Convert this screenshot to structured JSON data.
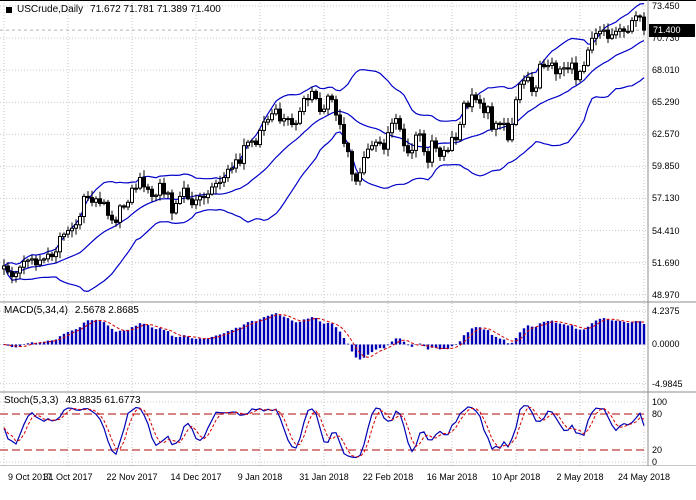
{
  "chart_data": {
    "type": "candlestick",
    "header": {
      "symbol_timeframe": "USCrude,Daily",
      "ohlc": "71.672 71.781 71.389 71.400",
      "bid": "71.400"
    },
    "price_axis_labels": [
      "73.450",
      "70.730",
      "68.010",
      "65.290",
      "62.570",
      "59.850",
      "57.130",
      "54.410",
      "51.690",
      "48.970"
    ],
    "price_range": [
      48.35,
      73.95
    ],
    "current_price": 71.4,
    "x_axis_labels": [
      "9 Oct 2017",
      "31 Oct 2017",
      "22 Nov 2017",
      "14 Dec 2017",
      "9 Jan 2018",
      "31 Jan 2018",
      "22 Feb 2018",
      "16 Mar 2018",
      "10 Apr 2018",
      "2 May 2018",
      "24 May 2018"
    ],
    "bars_per_label": 16,
    "closes": [
      51.4,
      50.9,
      50.5,
      50.8,
      51.3,
      51.8,
      51.9,
      52.0,
      51.5,
      51.9,
      52.0,
      52.4,
      52.2,
      52.6,
      53.9,
      54.1,
      54.4,
      54.6,
      54.9,
      55.6,
      57.3,
      57.2,
      56.8,
      57.1,
      56.7,
      56.8,
      55.7,
      55.3,
      55.1,
      56.5,
      56.4,
      56.8,
      58.0,
      58.0,
      58.9,
      58.1,
      57.9,
      57.3,
      57.4,
      58.4,
      57.5,
      57.6,
      55.9,
      56.7,
      57.3,
      58.0,
      57.1,
      56.6,
      57.0,
      57.3,
      57.2,
      57.5,
      58.1,
      58.4,
      58.5,
      58.9,
      59.6,
      59.7,
      60.4,
      60.1,
      61.6,
      61.9,
      62.0,
      61.7,
      62.9,
      63.6,
      63.8,
      64.3,
      64.7,
      63.7,
      63.9,
      63.9,
      63.4,
      63.5,
      64.5,
      65.6,
      65.5,
      66.2,
      65.6,
      64.5,
      64.7,
      65.8,
      65.5,
      64.2,
      63.4,
      61.8,
      61.1,
      59.2,
      58.6,
      59.3,
      60.6,
      61.3,
      61.6,
      61.9,
      61.8,
      61.3,
      62.7,
      63.5,
      63.9,
      63.0,
      61.6,
      61.0,
      61.2,
      62.5,
      62.6,
      61.1,
      60.2,
      62.0,
      61.4,
      60.7,
      61.2,
      61.2,
      62.3,
      62.1,
      63.4,
      65.2,
      64.9,
      65.9,
      65.5,
      65.2,
      64.4,
      64.9,
      63.0,
      63.5,
      63.4,
      63.5,
      62.1,
      63.4,
      65.5,
      66.8,
      67.1,
      67.4,
      66.2,
      66.5,
      68.5,
      68.3,
      68.4,
      68.6,
      67.7,
      68.1,
      68.2,
      68.1,
      68.6,
      67.2,
      67.9,
      68.4,
      69.7,
      70.7,
      71.1,
      71.3,
      71.4,
      70.7,
      71.0,
      71.3,
      71.5,
      71.3,
      71.3,
      72.2,
      72.6,
      72.5,
      71.4
    ],
    "bollinger": {
      "period": 20,
      "deviations": 2
    },
    "macd": {
      "label": "MACD(5,34,4)",
      "values_text": "2.5678 2.8685",
      "fast_ema": 5,
      "slow_ema": 34,
      "signal_sma": 4,
      "axis_labels": [
        "4.2375",
        "0.0000",
        "-4.9845"
      ],
      "range": [
        -5.8,
        4.9
      ]
    },
    "stochastic": {
      "label": "Stoch(5,3,3)",
      "values_text": "43.8835 61.6773",
      "k_period": 5,
      "d_period": 3,
      "slowing": 3,
      "axis_labels": [
        "100",
        "80",
        "20",
        "0"
      ],
      "levels": [
        80,
        20
      ],
      "range": [
        0,
        100
      ]
    },
    "colors": {
      "background": "#ffffff",
      "grid": "#c9c9c9",
      "candle": "#000000",
      "bollinger": "#0000c8",
      "macd_histogram": "#0000b4",
      "signal_line": "#d40000",
      "stoch_main": "#0000b4",
      "stoch_signal": "#d40000",
      "level_line": "#c03a3a",
      "bid_line": "#b4b4b4",
      "price_tag_bg": "#000000",
      "price_tag_text": "#ffffff",
      "separator": "#8c8c8c",
      "text": "#000000"
    }
  }
}
